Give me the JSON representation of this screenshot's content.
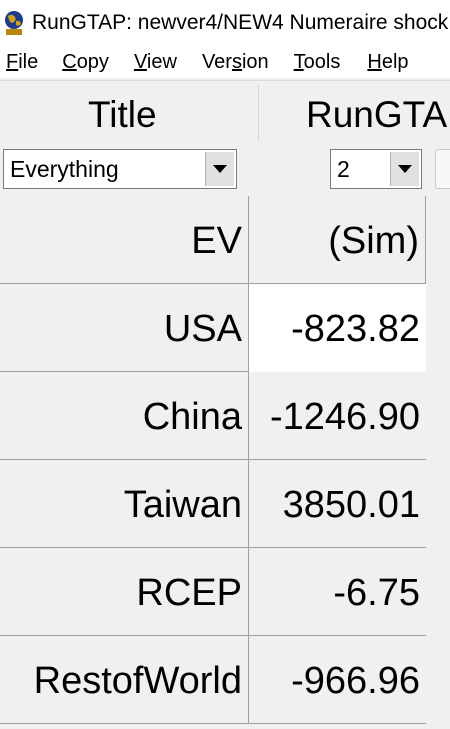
{
  "window": {
    "title": "RunGTAP: newver4/NEW4  Numeraire shock"
  },
  "menu": {
    "items": [
      {
        "label": "File",
        "underline": "F",
        "rest": "ile"
      },
      {
        "label": "Copy",
        "underline": "C",
        "rest": "opy"
      },
      {
        "label": "View",
        "underline": "V",
        "rest": "iew"
      },
      {
        "label": "Version",
        "pre": "Ver",
        "underline": "s",
        "rest": "ion"
      },
      {
        "label": "Tools",
        "underline": "T",
        "rest": "ools"
      },
      {
        "label": "Help",
        "underline": "H",
        "rest": "elp"
      }
    ]
  },
  "header": {
    "title_label": "Title",
    "rungtap_label": "RunGTA"
  },
  "controls": {
    "view_select_value": "Everything",
    "decimals_select_value": "2"
  },
  "table": {
    "columns": [
      "EV",
      "(Sim)"
    ],
    "rows": [
      {
        "label": "USA",
        "value": "-823.82"
      },
      {
        "label": "China",
        "value": "-1246.90"
      },
      {
        "label": "Taiwan",
        "value": "3850.01"
      },
      {
        "label": "RCEP",
        "value": "-6.75"
      },
      {
        "label": "RestofWorld",
        "value": "-966.96"
      }
    ]
  },
  "colors": {
    "background": "#f0f0f0",
    "selected_cell": "#ffffff",
    "grid_line": "#a0a0a0"
  }
}
